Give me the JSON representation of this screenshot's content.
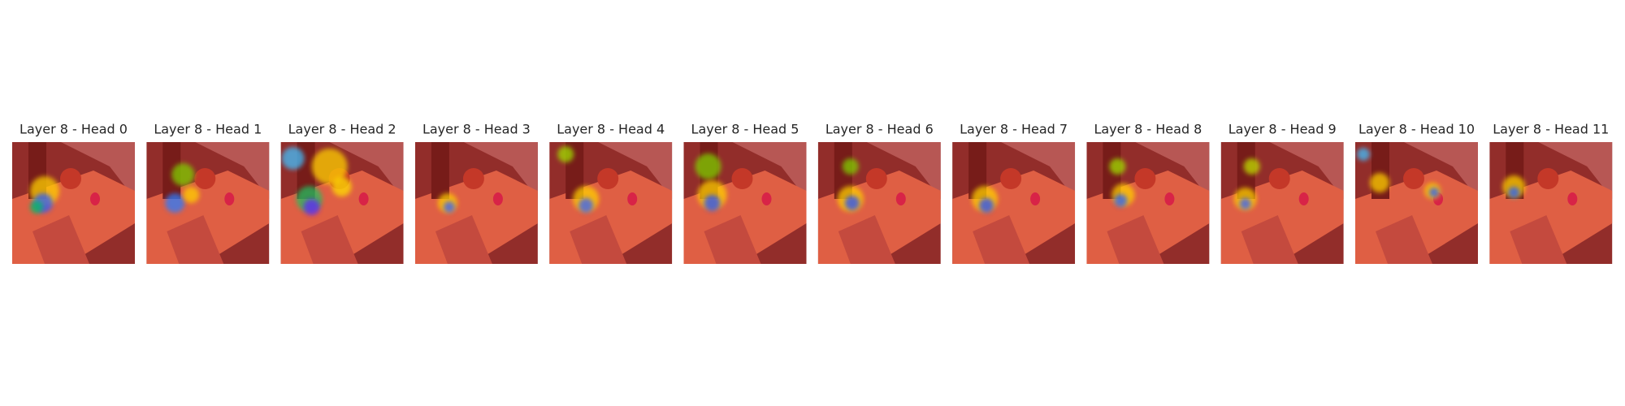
{
  "panels": [
    {
      "title": "Layer 8 - Head 0"
    },
    {
      "title": "Layer 8 - Head 1"
    },
    {
      "title": "Layer 8 - Head 2"
    },
    {
      "title": "Layer 8 - Head 3"
    },
    {
      "title": "Layer 8 - Head 4"
    },
    {
      "title": "Layer 8 - Head 5"
    },
    {
      "title": "Layer 8 - Head 6"
    },
    {
      "title": "Layer 8 - Head 7"
    },
    {
      "title": "Layer 8 - Head 8"
    },
    {
      "title": "Layer 8 - Head 9"
    },
    {
      "title": "Layer 8 - Head 10"
    },
    {
      "title": "Layer 8 - Head 11"
    }
  ]
}
